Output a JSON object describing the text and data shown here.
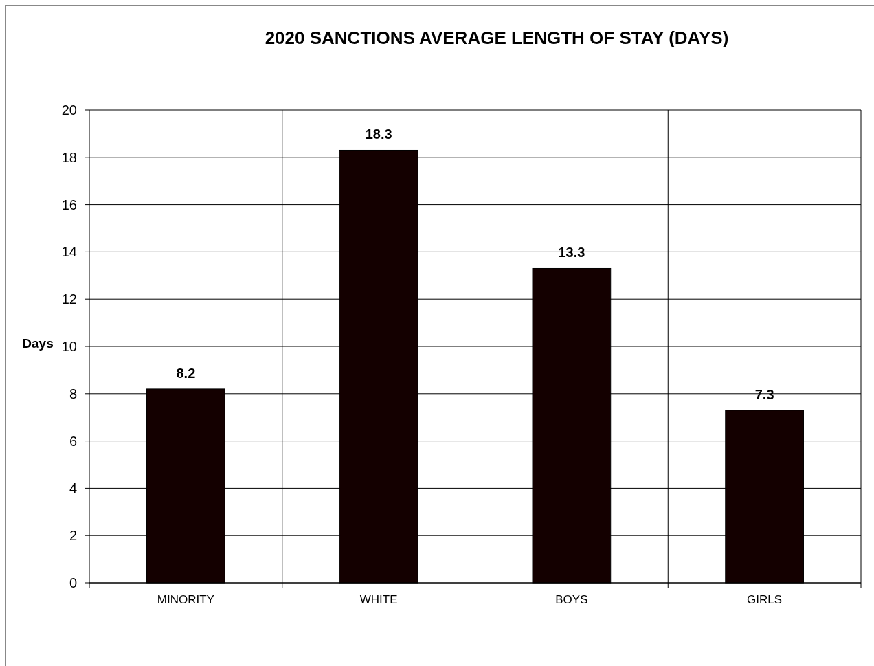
{
  "chart_data": {
    "type": "bar",
    "title": "2020 SANCTIONS AVERAGE LENGTH OF STAY (DAYS)",
    "ylabel": "Days",
    "categories": [
      "MINORITY",
      "WHITE",
      "BOYS",
      "GIRLS"
    ],
    "values": [
      8.2,
      18.3,
      13.3,
      7.3
    ],
    "color": "#140000",
    "ylim": [
      0,
      20
    ],
    "yticks": [
      0,
      2,
      4,
      6,
      8,
      10,
      12,
      14,
      16,
      18,
      20
    ],
    "grid": true,
    "data_labels": true
  }
}
